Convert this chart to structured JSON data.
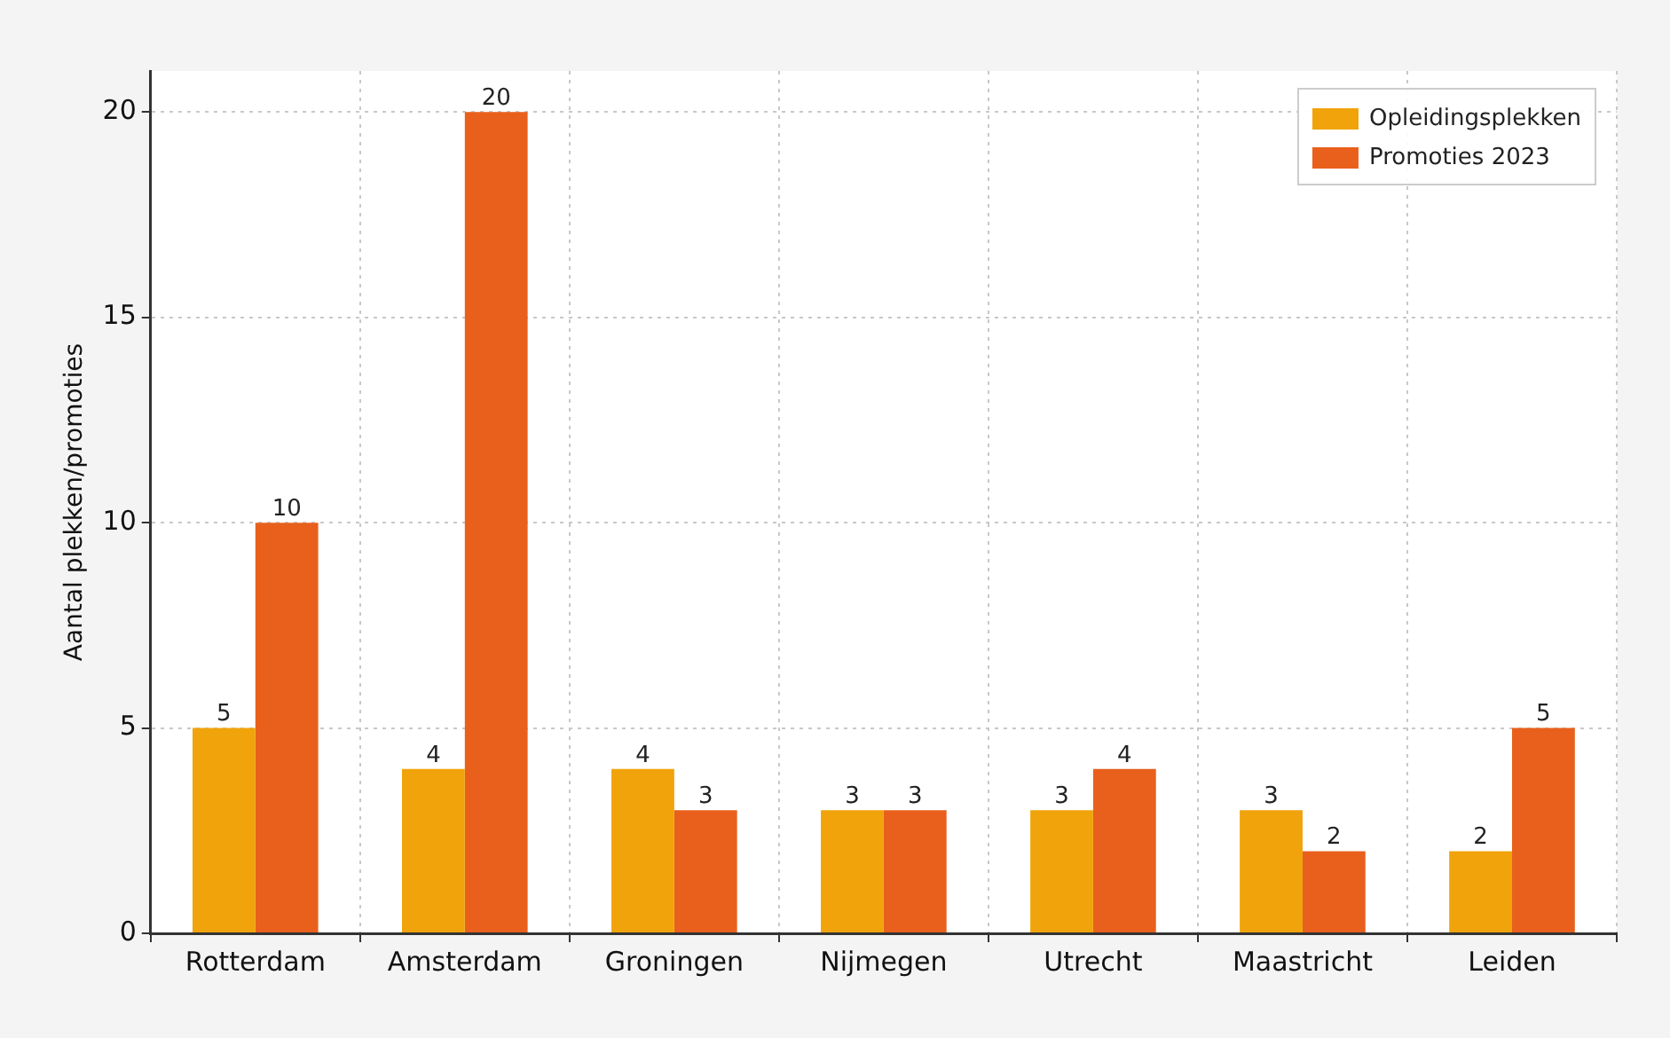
{
  "chart_data": {
    "type": "bar",
    "ylabel": "Aantal plekken/promoties",
    "categories": [
      "Rotterdam",
      "Amsterdam",
      "Groningen",
      "Nijmegen",
      "Utrecht",
      "Maastricht",
      "Leiden"
    ],
    "series": [
      {
        "name": "Opleidingsplekken",
        "color": "#f0a30a",
        "values": [
          5,
          4,
          4,
          3,
          3,
          3,
          2
        ]
      },
      {
        "name": "Promoties 2023",
        "color": "#e8601c",
        "values": [
          10,
          20,
          3,
          3,
          4,
          2,
          5
        ]
      }
    ],
    "ylim": [
      0,
      21
    ],
    "yticks": [
      0,
      5,
      10,
      15,
      20
    ],
    "grid": true,
    "legend": "top right",
    "data_labels": true
  }
}
